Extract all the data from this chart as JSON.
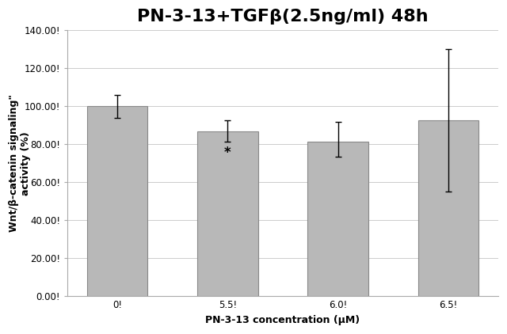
{
  "title": "PN-3-13+TGFβ(2.5ng/ml) 48h",
  "xlabel": "PN-3-13 concentration (μM)",
  "ylabel": "Wnt/β-catenin signaling\"\nactivity (%)",
  "categories": [
    "0!",
    "5.5!",
    "6.0!",
    "6.5!"
  ],
  "values": [
    100.0,
    87.0,
    81.5,
    92.5
  ],
  "errors_upper": [
    6.0,
    5.5,
    10.5,
    37.5
  ],
  "errors_lower": [
    6.0,
    5.5,
    8.0,
    37.5
  ],
  "bar_color": "#b8b8b8",
  "bar_edge_color": "#888888",
  "ylim": [
    0,
    140
  ],
  "yticks": [
    0.0,
    20.0,
    40.0,
    60.0,
    80.0,
    100.0,
    120.0,
    140.0
  ],
  "ytick_labels": [
    "0.00!",
    "20.00!",
    "40.00!",
    "60.00!",
    "80.00!",
    "100.00!",
    "120.00!",
    "140.00!"
  ],
  "significance_bar_index": 1,
  "significance_label": "*",
  "title_fontsize": 16,
  "axis_label_fontsize": 9,
  "tick_fontsize": 8.5,
  "bar_width": 0.55,
  "plot_bg_color": "#ffffff",
  "fig_bg_color": "#ffffff",
  "grid_color": "#cccccc"
}
